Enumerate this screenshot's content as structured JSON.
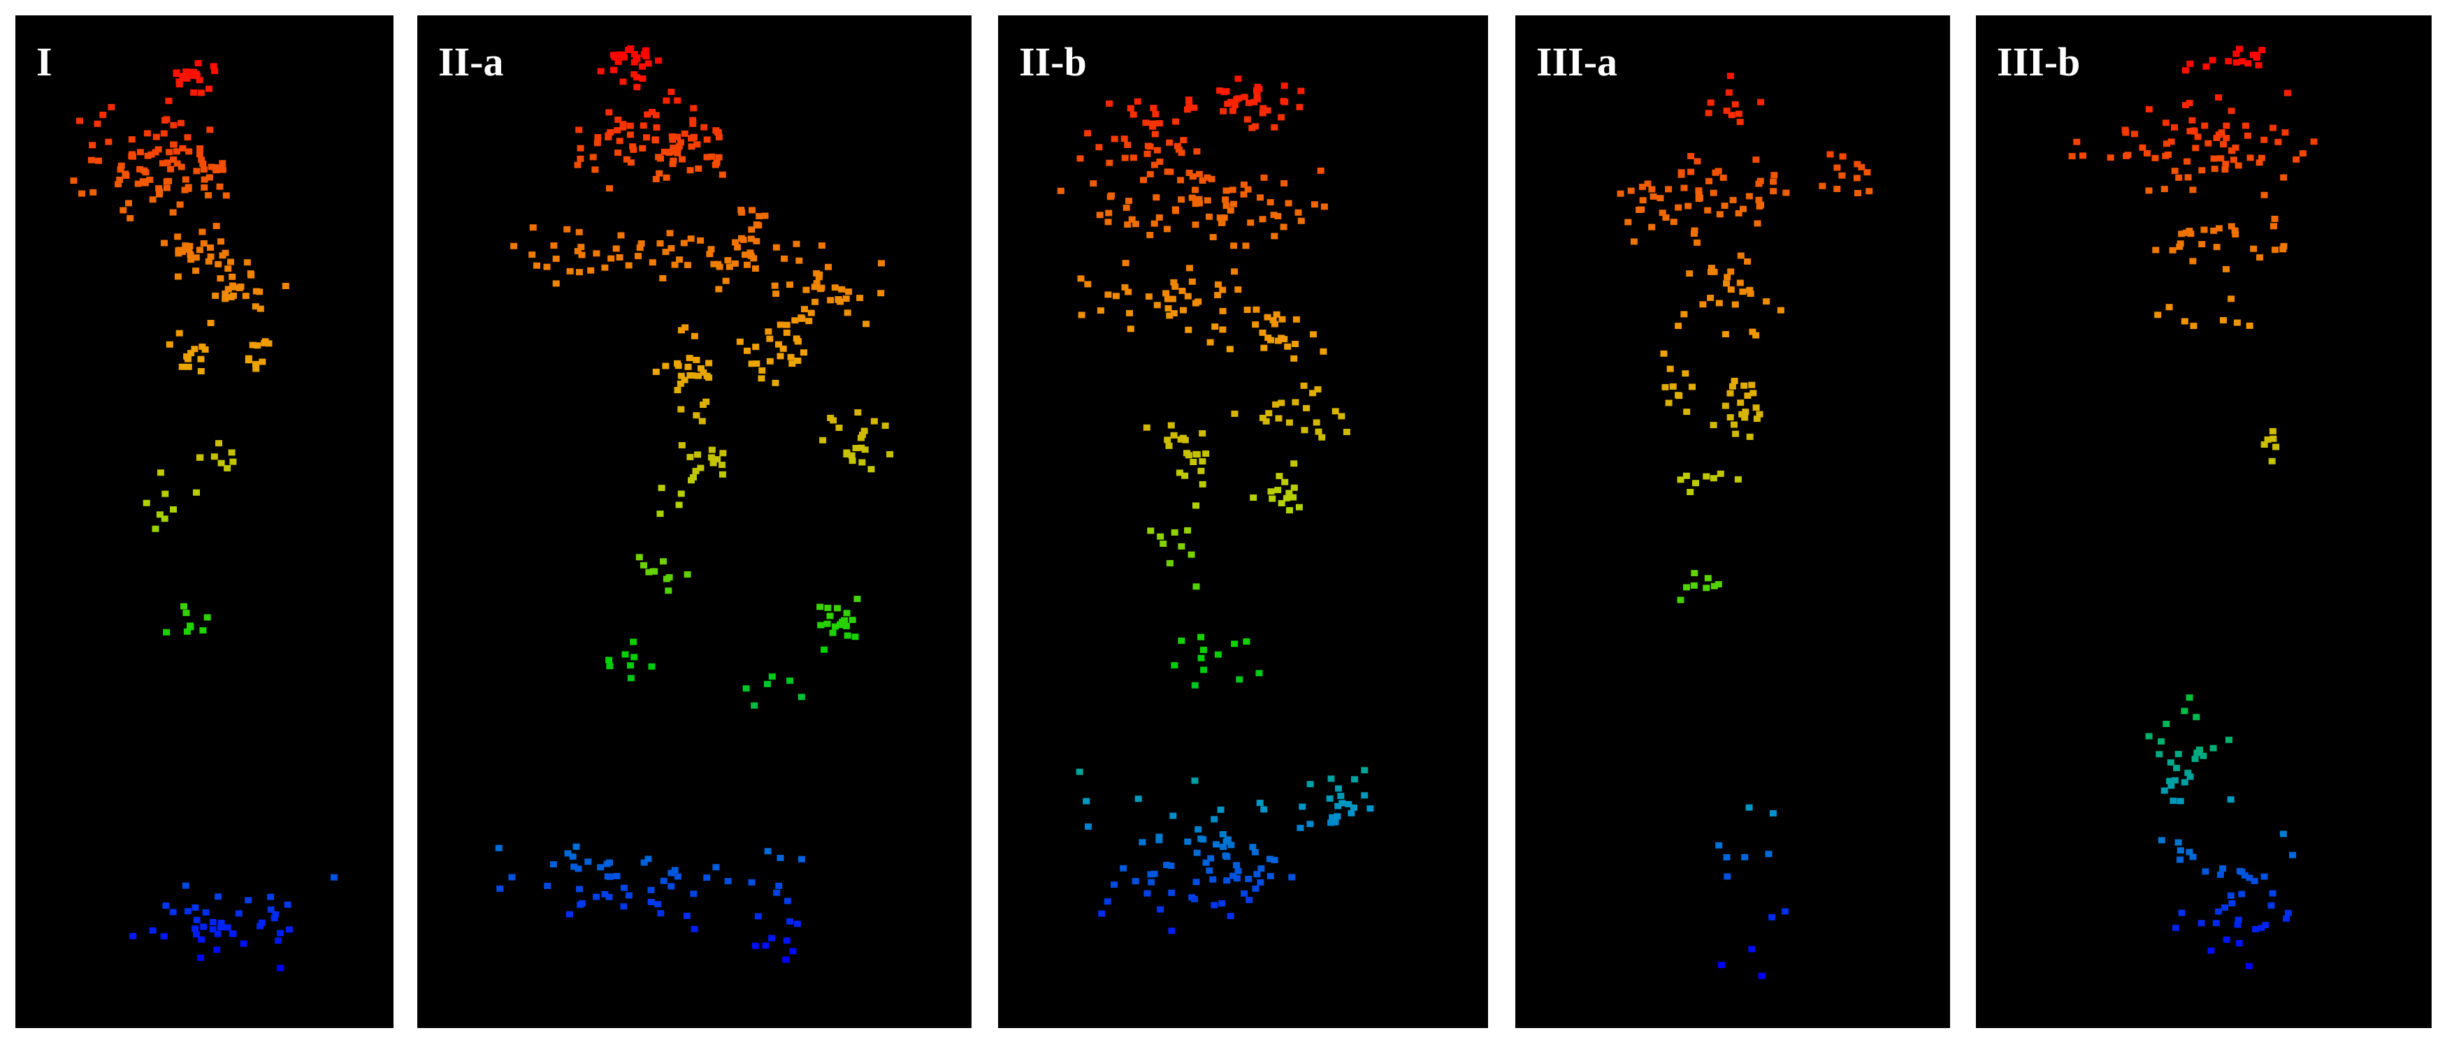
{
  "figure": {
    "background": "#000000",
    "panels": [
      {
        "key": "I",
        "label": "I"
      },
      {
        "key": "IIa",
        "label": "II-a"
      },
      {
        "key": "IIb",
        "label": "II-b"
      },
      {
        "key": "IIIa",
        "label": "III-a"
      },
      {
        "key": "IIIb",
        "label": "III-b"
      }
    ],
    "color_scale": [
      "#0000ff",
      "#0096c8",
      "#00d200",
      "#b4d200",
      "#f0a000",
      "#f06400",
      "#ff0000"
    ]
  }
}
